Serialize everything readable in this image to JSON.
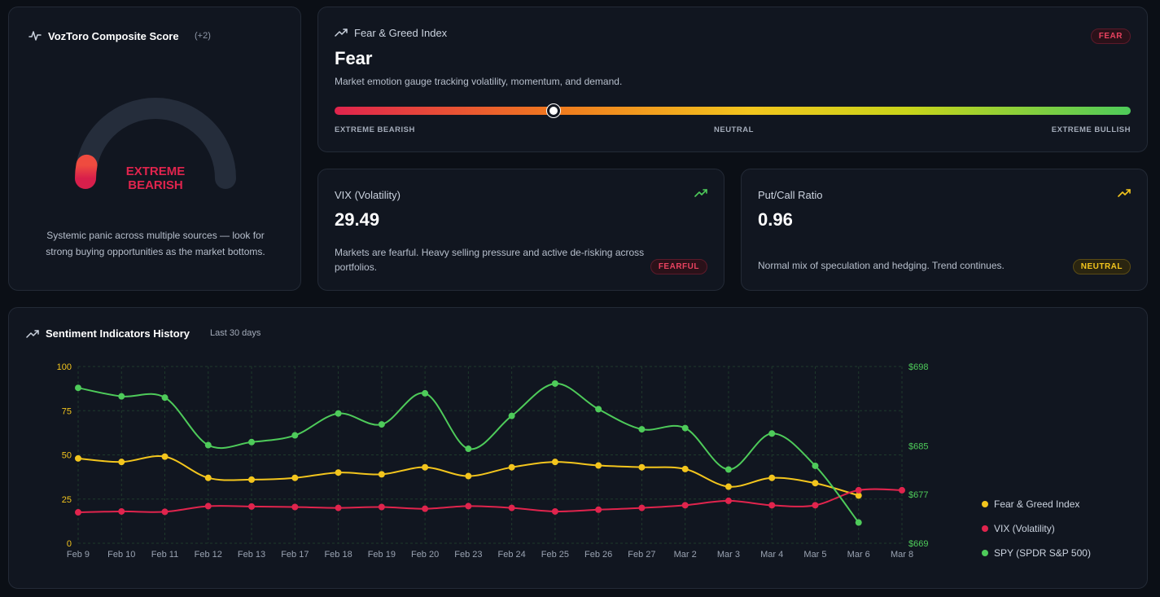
{
  "composite": {
    "title": "VozToro Composite Score",
    "delta": "(+2)",
    "gauge_value": 6,
    "gauge_label_line1": "EXTREME",
    "gauge_label_line2": "BEARISH",
    "description": "Systemic panic across multiple sources — look for strong buying opportunities as the market bottoms.",
    "colors": {
      "track": "#252d3b",
      "bearish": "#d81f4b",
      "accent": "#ef4b3f"
    }
  },
  "fear_greed": {
    "title": "Fear & Greed Index",
    "badge": "FEAR",
    "headline": "Fear",
    "description": "Market emotion gauge tracking volatility, momentum, and demand.",
    "slider_value": 27.5,
    "scale_left": "EXTREME BEARISH",
    "scale_center": "NEUTRAL",
    "scale_right": "EXTREME BULLISH"
  },
  "vix": {
    "title": "VIX (Volatility)",
    "value": "29.49",
    "description": "Markets are fearful. Heavy selling pressure and active de-risking across portfolios.",
    "badge": "FEARFUL",
    "trend_icon": "trending-up-icon"
  },
  "put_call": {
    "title": "Put/Call Ratio",
    "value": "0.96",
    "description": "Normal mix of speculation and hedging. Trend continues.",
    "badge": "NEUTRAL",
    "trend_icon": "trending-up-icon"
  },
  "history": {
    "title": "Sentiment Indicators History",
    "subtitle": "Last 30 days"
  },
  "chart_data": {
    "type": "line",
    "title": "Sentiment Indicators History",
    "categories": [
      "Feb 9",
      "Feb 10",
      "Feb 11",
      "Feb 12",
      "Feb 13",
      "Feb 17",
      "Feb 18",
      "Feb 19",
      "Feb 20",
      "Feb 23",
      "Feb 24",
      "Feb 25",
      "Feb 26",
      "Feb 27",
      "Mar 2",
      "Mar 3",
      "Mar 4",
      "Mar 5",
      "Mar 6",
      "Mar 8"
    ],
    "left_axis": {
      "ylim": [
        0,
        100
      ],
      "ticks": [
        "0",
        "25",
        "50",
        "75",
        "100"
      ]
    },
    "right_axis": {
      "ylim": [
        669,
        698
      ],
      "ticks": [
        {
          "label": "$669",
          "value": 669
        },
        {
          "label": "$677",
          "value": 677
        },
        {
          "label": "$685",
          "value": 685
        },
        {
          "label": "$698",
          "value": 698
        }
      ]
    },
    "series": [
      {
        "name": "Fear & Greed Index",
        "axis": "left",
        "color": "#f3c51d",
        "values": [
          48,
          46,
          49,
          37,
          36,
          37,
          40,
          39,
          43,
          38,
          43,
          46,
          44,
          43,
          42,
          32,
          37,
          34,
          27,
          null
        ]
      },
      {
        "name": "VIX (Volatility)",
        "axis": "left",
        "color": "#e0244d",
        "values": [
          17.5,
          18,
          17.8,
          21,
          20.8,
          20.5,
          20,
          20.5,
          19.5,
          21,
          20,
          18,
          19,
          20,
          21.5,
          24,
          21.5,
          21.5,
          30,
          30
        ]
      },
      {
        "name": "SPY (SPDR S&P 500)",
        "axis": "right",
        "color": "#4ecb5a",
        "values": [
          694.5,
          693.1,
          692.9,
          685.1,
          685.6,
          686.7,
          690.3,
          688.5,
          693.6,
          684.5,
          689.9,
          695.2,
          691.0,
          687.7,
          687.9,
          681.1,
          687.0,
          681.7,
          672.4,
          null
        ]
      }
    ]
  }
}
